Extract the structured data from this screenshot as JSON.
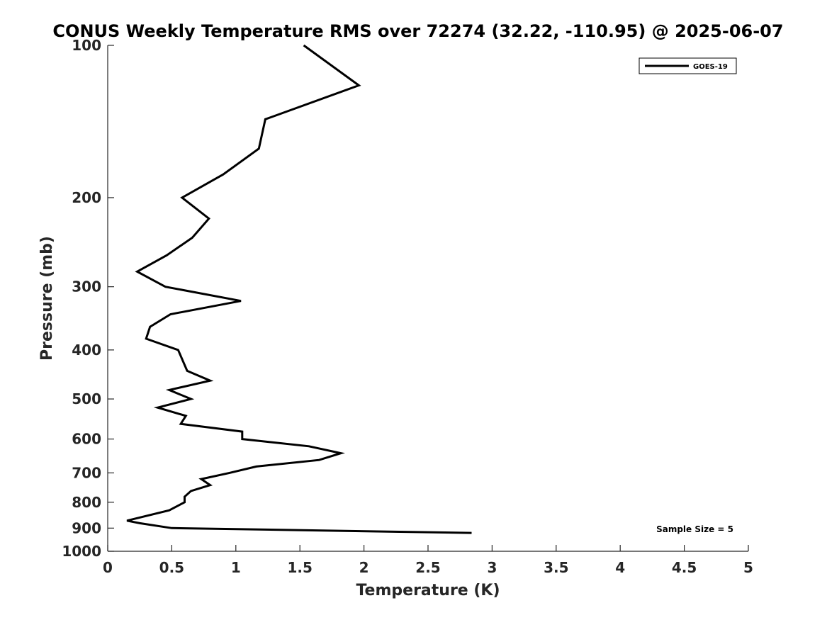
{
  "chart_data": {
    "type": "line",
    "title": "CONUS Weekly Temperature RMS over 72274 (32.22, -110.95) @ 2025-06-07",
    "xlabel": "Temperature (K)",
    "ylabel": "Pressure (mb)",
    "xlim": [
      0,
      5
    ],
    "ylim": [
      100,
      1000
    ],
    "yscale": "log",
    "y_reversed": true,
    "grid": false,
    "legend_position": "top-right",
    "xticks": [
      0,
      0.5,
      1,
      1.5,
      2,
      2.5,
      3,
      3.5,
      4,
      4.5,
      5
    ],
    "xtick_labels": [
      "0",
      "0.5",
      "1",
      "1.5",
      "2",
      "2.5",
      "3",
      "3.5",
      "4",
      "4.5",
      "5"
    ],
    "yticks": [
      100,
      200,
      300,
      400,
      500,
      600,
      700,
      800,
      900,
      1000
    ],
    "ytick_labels": [
      "100",
      "200",
      "300",
      "400",
      "500",
      "600",
      "700",
      "800",
      "900",
      "1000"
    ],
    "series": [
      {
        "name": "GOES-19",
        "color": "#000000",
        "points": [
          {
            "x": 1.53,
            "y": 100
          },
          {
            "x": 1.96,
            "y": 120
          },
          {
            "x": 1.23,
            "y": 140
          },
          {
            "x": 1.18,
            "y": 160
          },
          {
            "x": 0.9,
            "y": 180
          },
          {
            "x": 0.58,
            "y": 200
          },
          {
            "x": 0.79,
            "y": 220
          },
          {
            "x": 0.66,
            "y": 240
          },
          {
            "x": 0.46,
            "y": 260
          },
          {
            "x": 0.23,
            "y": 280
          },
          {
            "x": 0.45,
            "y": 300
          },
          {
            "x": 1.04,
            "y": 320
          },
          {
            "x": 0.49,
            "y": 340
          },
          {
            "x": 0.33,
            "y": 360
          },
          {
            "x": 0.3,
            "y": 380
          },
          {
            "x": 0.55,
            "y": 400
          },
          {
            "x": 0.62,
            "y": 440
          },
          {
            "x": 0.8,
            "y": 460
          },
          {
            "x": 0.48,
            "y": 480
          },
          {
            "x": 0.65,
            "y": 500
          },
          {
            "x": 0.39,
            "y": 520
          },
          {
            "x": 0.61,
            "y": 540
          },
          {
            "x": 0.57,
            "y": 560
          },
          {
            "x": 1.05,
            "y": 580
          },
          {
            "x": 1.05,
            "y": 600
          },
          {
            "x": 1.57,
            "y": 620
          },
          {
            "x": 1.82,
            "y": 640
          },
          {
            "x": 1.65,
            "y": 660
          },
          {
            "x": 1.16,
            "y": 680
          },
          {
            "x": 0.95,
            "y": 700
          },
          {
            "x": 0.73,
            "y": 720
          },
          {
            "x": 0.8,
            "y": 740
          },
          {
            "x": 0.65,
            "y": 760
          },
          {
            "x": 0.6,
            "y": 780
          },
          {
            "x": 0.6,
            "y": 800
          },
          {
            "x": 0.48,
            "y": 830
          },
          {
            "x": 0.15,
            "y": 870
          },
          {
            "x": 0.25,
            "y": 880
          },
          {
            "x": 0.5,
            "y": 900
          },
          {
            "x": 2.84,
            "y": 920
          }
        ]
      }
    ],
    "annotations": [
      {
        "text": "Sample Size = 5",
        "position": "bottom-right"
      }
    ]
  }
}
